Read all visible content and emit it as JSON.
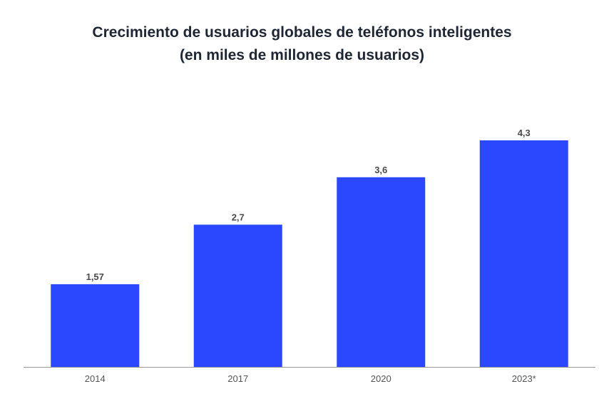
{
  "chart_data": {
    "type": "bar",
    "title": "Crecimiento de usuarios globales de teléfonos inteligentes",
    "subtitle": "(en miles de millones de usuarios)",
    "categories": [
      "2014",
      "2017",
      "2020",
      "2023*"
    ],
    "values": [
      1.57,
      2.7,
      3.6,
      4.3
    ],
    "data_labels": [
      "1,57",
      "2,7",
      "3,6",
      "4,3"
    ],
    "xlabel": "",
    "ylabel": "",
    "ylim": [
      0,
      4.3
    ],
    "grid": false,
    "bar_color": "#2b48ff",
    "label_color": "#4a4a4a"
  }
}
